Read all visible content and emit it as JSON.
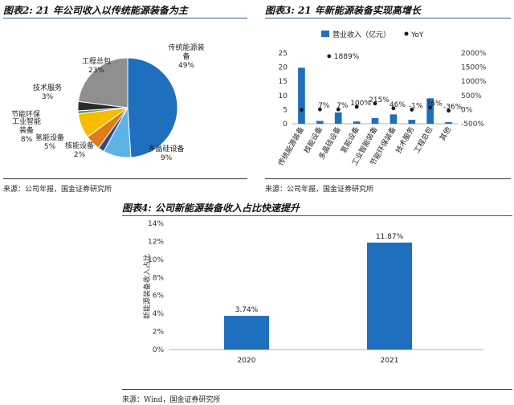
{
  "figure2": {
    "title": "图表2: 21 年公司收入以传统能源装备为主",
    "source": "来源：公司年报，国金证券研究所",
    "chart_data": {
      "type": "pie",
      "slices": [
        {
          "label_lines": [
            "传统能源装",
            "备"
          ],
          "pct_text": "49%",
          "value": 49,
          "color": "#1f6fbf"
        },
        {
          "label_lines": [
            "多晶硅设备"
          ],
          "pct_text": "9%",
          "value": 9,
          "color": "#5bb3e6"
        },
        {
          "label_lines": [
            "核能设备"
          ],
          "pct_text": "2%",
          "value": 2,
          "color": "#2c4f86"
        },
        {
          "label_lines": [
            "氢能设备"
          ],
          "pct_text": "5%",
          "value": 5,
          "color": "#e07c16"
        },
        {
          "label_lines": [
            "工业智能",
            "装备"
          ],
          "pct_text": "8%",
          "value": 8,
          "color": "#f5bc00"
        },
        {
          "label_lines": [
            "节能环保"
          ],
          "pct_text": "",
          "value": 1,
          "color": "#4f9a4f"
        },
        {
          "label_lines": [
            "技术服务"
          ],
          "pct_text": "3%",
          "value": 3,
          "color": "#2b2b2b"
        },
        {
          "label_lines": [
            "工程总包"
          ],
          "pct_text": "23%",
          "value": 23,
          "color": "#8f8f8f"
        }
      ]
    }
  },
  "figure3": {
    "title": "图表3: 21 年新能源装备实现高增长",
    "source": "来源：公司年报，国金证券研究所",
    "chart_data": {
      "type": "bar",
      "categories": [
        "传统能源装备",
        "核能设备",
        "多晶硅设备",
        "氢能设备",
        "工业智能装备",
        "节能环保装备",
        "技术服务",
        "工程总包",
        "其他"
      ],
      "series": [
        {
          "name": "营业收入（亿元）",
          "type": "bar",
          "axis": "left",
          "color": "#1f6fbf",
          "values": [
            19.8,
            1.0,
            4.0,
            0.8,
            2.0,
            3.3,
            1.4,
            9.0,
            0.6
          ]
        },
        {
          "name": "YoY",
          "type": "scatter",
          "axis": "right",
          "color": "#1a1a1a",
          "values": [
            -5,
            7,
            7,
            100,
            215,
            46,
            -1,
            76,
            -36
          ],
          "labels": [
            "",
            "7%",
            "7%",
            "100%",
            "215%",
            "46%",
            "-1%",
            "76%",
            "-36%"
          ]
        }
      ],
      "extra_point": {
        "x_between": [
          1,
          2
        ],
        "value": 1889,
        "label": "1889%"
      },
      "ylim_left": [
        0,
        25
      ],
      "yticks_left": [
        "0",
        "5",
        "10",
        "15",
        "20",
        "25"
      ],
      "ylim_right": [
        -500,
        2000
      ],
      "yticks_right": [
        "-500%",
        "0%",
        "500%",
        "1000%",
        "1500%",
        "2000%"
      ],
      "legend": [
        "营业收入（亿元）",
        "YoY"
      ],
      "legend_position": "top"
    }
  },
  "figure4": {
    "title": "图表4: 公司新能源装备收入占比快速提升",
    "source": "来源：Wind，国金证券研究所",
    "chart_data": {
      "type": "bar",
      "categories": [
        "2020",
        "2021"
      ],
      "values": [
        3.74,
        11.87
      ],
      "labels": [
        "3.74%",
        "11.87%"
      ],
      "ylabel": "新能源装备收入占比",
      "ylim": [
        0,
        14
      ],
      "yticks": [
        "0%",
        "2%",
        "4%",
        "6%",
        "8%",
        "10%",
        "12%",
        "14%"
      ],
      "color": "#1f6fbf"
    }
  }
}
